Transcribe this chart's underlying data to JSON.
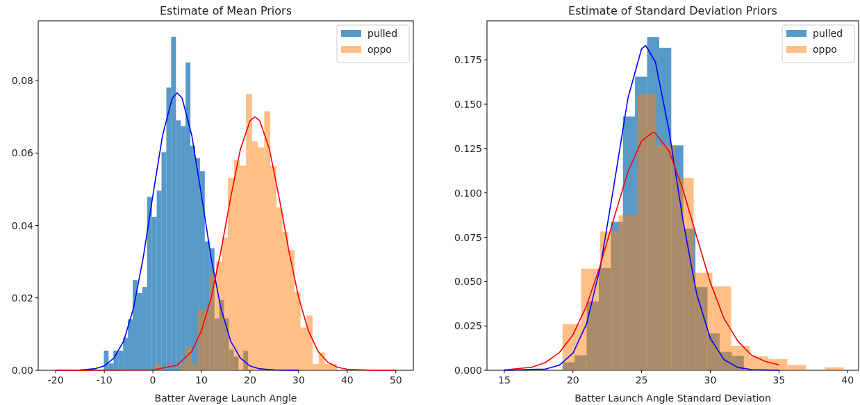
{
  "chart_data": [
    {
      "type": "histogram",
      "title": "Estimate of Mean Priors",
      "xlabel": "Batter Average Launch Angle",
      "xlim": [
        -23.6,
        53.6
      ],
      "ylim": [
        0,
        0.0965
      ],
      "xticks": [
        -20,
        -10,
        0,
        10,
        20,
        30,
        40,
        50
      ],
      "yticks": [
        {
          "value": 0,
          "label": "0.00"
        },
        {
          "value": 0.02,
          "label": "0.02"
        },
        {
          "value": 0.04,
          "label": "0.04"
        },
        {
          "value": 0.06,
          "label": "0.06"
        },
        {
          "value": 0.08,
          "label": "0.08"
        }
      ],
      "grid": false,
      "legend": "top right",
      "series": [
        {
          "name": "pulled",
          "color": "#1f77b4",
          "bins": [
            -10.1,
            -9.11,
            -8.12,
            -7.13,
            -6.14,
            -5.15,
            -4.16,
            -3.17,
            -2.18,
            -1.19,
            -0.2,
            0.79,
            1.78,
            2.77,
            3.76,
            4.75,
            5.74,
            6.73,
            7.72,
            8.71,
            9.7,
            10.69,
            11.68,
            12.67,
            13.66,
            14.65,
            15.64,
            16.63,
            17.62,
            18.61,
            19.6
          ],
          "values": [
            0.0054,
            0.0019,
            0.0054,
            0.0054,
            0.009,
            0.0141,
            0.0249,
            0.0213,
            0.023,
            0.0479,
            0.0424,
            0.0496,
            0.0602,
            0.0781,
            0.0921,
            0.069,
            0.0674,
            0.085,
            0.062,
            0.0586,
            0.055,
            0.0356,
            0.0337,
            0.0143,
            0.0194,
            0.0143,
            0.0057,
            0.0038,
            0,
            0.0054
          ]
        },
        {
          "name": "oppo",
          "color": "#ff7f0e",
          "bins": [
            0.5,
            1.745,
            2.99,
            4.235,
            5.48,
            6.725,
            7.97,
            9.215,
            10.46,
            11.705,
            12.95,
            14.195,
            15.44,
            16.685,
            17.93,
            19.175,
            20.42,
            21.665,
            22.91,
            24.155,
            25.4,
            26.645,
            27.89,
            29.135,
            30.38,
            31.625,
            32.87,
            34.115,
            35.36,
            36.605,
            37.85
          ],
          "values": [
            0.0017,
            0,
            0,
            0,
            0.0017,
            0.0067,
            0.0017,
            0.0167,
            0.0167,
            0.0265,
            0.03,
            0.0367,
            0.0531,
            0.0581,
            0.0565,
            0.0763,
            0.0632,
            0.0615,
            0.0715,
            0.0565,
            0.045,
            0.0382,
            0.0332,
            0.0215,
            0.0118,
            0.0151,
            0.0017,
            0.0049,
            0.0017,
            0.0017
          ]
        },
        {
          "type": "line",
          "color": "#0000ff",
          "x": [
            -20,
            -15,
            -12,
            -10,
            -8,
            -6,
            -4,
            -2,
            0,
            2,
            4,
            5,
            6,
            8,
            10,
            12,
            14,
            16,
            18,
            20,
            22,
            25,
            30
          ],
          "values": [
            0,
            0.0001,
            0.0004,
            0.0012,
            0.0034,
            0.0081,
            0.0171,
            0.031,
            0.0483,
            0.0649,
            0.0752,
            0.0766,
            0.0752,
            0.0649,
            0.0483,
            0.031,
            0.0171,
            0.0081,
            0.0034,
            0.0012,
            0.0004,
            0.0001,
            0
          ]
        },
        {
          "type": "line",
          "color": "#ff0000",
          "x": [
            -20,
            0,
            5,
            8,
            10,
            12,
            14,
            16,
            18,
            20,
            21,
            22,
            24,
            26,
            28,
            30,
            32,
            34,
            36,
            38,
            40,
            45,
            50
          ],
          "values": [
            0,
            0.0001,
            0.0014,
            0.0052,
            0.0109,
            0.0201,
            0.0329,
            0.0476,
            0.061,
            0.0689,
            0.07,
            0.0689,
            0.061,
            0.0476,
            0.0329,
            0.0201,
            0.0109,
            0.0052,
            0.0022,
            0.0008,
            0.0003,
            0,
            0
          ]
        }
      ]
    },
    {
      "type": "histogram",
      "title": "Estimate of Standard Deviation Priors",
      "xlabel": "Batter Launch Angle Standard Deviation",
      "xlim": [
        13.74,
        40.8
      ],
      "ylim": [
        0,
        0.197
      ],
      "xticks": [
        15,
        20,
        25,
        30,
        35,
        40
      ],
      "yticks": [
        {
          "value": 0,
          "label": "0.000"
        },
        {
          "value": 0.025,
          "label": "0.025"
        },
        {
          "value": 0.05,
          "label": "0.050"
        },
        {
          "value": 0.075,
          "label": "0.075"
        },
        {
          "value": 0.1,
          "label": "0.100"
        },
        {
          "value": 0.125,
          "label": "0.125"
        },
        {
          "value": 0.15,
          "label": "0.150"
        },
        {
          "value": 0.175,
          "label": "0.175"
        }
      ],
      "grid": false,
      "legend": "top right",
      "series": [
        {
          "name": "pulled",
          "color": "#1f77b4",
          "bins": [
            19.24,
            20.12,
            21.0,
            21.88,
            22.76,
            23.64,
            24.52,
            25.4,
            26.28,
            27.16,
            28.04,
            28.92,
            29.8,
            30.68,
            31.56,
            32.44
          ],
          "values": [
            0.0045,
            0.0084,
            0.0388,
            0.0576,
            0.0837,
            0.1431,
            0.1655,
            0.1879,
            0.1818,
            0.1268,
            0.0799,
            0.0469,
            0.0208,
            0.0104,
            0.0082
          ]
        },
        {
          "name": "oppo",
          "color": "#ff7f0e",
          "bins": [
            19.24,
            20.6,
            21.97,
            23.33,
            24.7,
            26.06,
            27.42,
            28.79,
            30.15,
            31.52,
            32.88,
            34.24,
            35.61,
            36.97,
            38.34,
            39.7
          ],
          "values": [
            0.026,
            0.0573,
            0.0782,
            0.0873,
            0.1557,
            0.1268,
            0.1085,
            0.055,
            0.0473,
            0.0137,
            0.0078,
            0.0063,
            0.003,
            0,
            0.0017
          ]
        },
        {
          "type": "line",
          "color": "#0000ff",
          "x": [
            15,
            18,
            19,
            20,
            21,
            22,
            23,
            24,
            25,
            25.3,
            26,
            27,
            28,
            29,
            30,
            31,
            32,
            33,
            35
          ],
          "values": [
            0,
            0.0007,
            0.0028,
            0.0096,
            0.0263,
            0.0585,
            0.1049,
            0.1532,
            0.1813,
            0.183,
            0.1739,
            0.135,
            0.085,
            0.0433,
            0.018,
            0.006,
            0.0016,
            0.0004,
            0
          ]
        },
        {
          "type": "line",
          "color": "#ff0000",
          "x": [
            15,
            17,
            18,
            19,
            20,
            21,
            22,
            23,
            24,
            25,
            25.8,
            26,
            27,
            28,
            29,
            30,
            31,
            32,
            33,
            34,
            35
          ],
          "values": [
            0.0002,
            0.0017,
            0.0044,
            0.0099,
            0.02,
            0.0365,
            0.0594,
            0.0862,
            0.1117,
            0.1293,
            0.134,
            0.1337,
            0.1236,
            0.1021,
            0.0756,
            0.0496,
            0.0292,
            0.0165,
            0.0085,
            0.005,
            0.003
          ]
        }
      ]
    }
  ]
}
